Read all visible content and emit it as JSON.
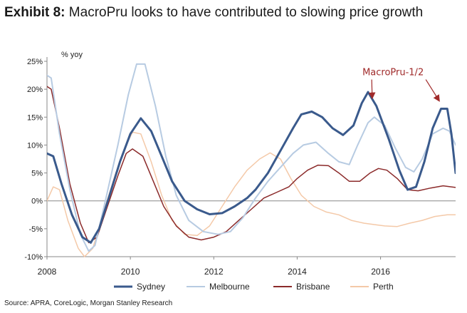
{
  "header": {
    "label": "Exhibit 8:",
    "text": "MacroPru looks to have contributed to slowing price growth"
  },
  "source": "Source: APRA, CoreLogic, Morgan Stanley Research",
  "chart_data": {
    "type": "line",
    "ylabel": "% yoy",
    "ylim": [
      -10,
      25
    ],
    "xlim": [
      2008,
      2017.8
    ],
    "yticks": [
      25,
      20,
      15,
      10,
      5,
      0,
      -5,
      -10
    ],
    "ytick_labels": [
      "25%",
      "20%",
      "15%",
      "10%",
      "5%",
      "0%",
      "-5%",
      "-10%"
    ],
    "xticks": [
      2008,
      2010,
      2012,
      2014,
      2016
    ],
    "xtick_labels": [
      "2008",
      "2010",
      "2012",
      "2014",
      "2016"
    ],
    "annotation": {
      "text": "MacroPru-1/2",
      "arrow_targets": [
        [
          2015.8,
          18.5
        ],
        [
          2017.4,
          18.0
        ]
      ],
      "text_anchor": [
        2016.3,
        22.5
      ]
    },
    "legend_position": "bottom",
    "series": [
      {
        "name": "Sydney",
        "color": "#3a5a8c",
        "width": 3,
        "points": [
          [
            2008.0,
            8.5
          ],
          [
            2008.15,
            8.0
          ],
          [
            2008.35,
            3.0
          ],
          [
            2008.6,
            -2.5
          ],
          [
            2008.85,
            -6.5
          ],
          [
            2009.05,
            -7.5
          ],
          [
            2009.25,
            -5.0
          ],
          [
            2009.5,
            1.0
          ],
          [
            2009.75,
            7.0
          ],
          [
            2010.0,
            12.0
          ],
          [
            2010.25,
            14.8
          ],
          [
            2010.5,
            12.5
          ],
          [
            2010.75,
            8.0
          ],
          [
            2011.0,
            3.5
          ],
          [
            2011.3,
            0.0
          ],
          [
            2011.6,
            -1.5
          ],
          [
            2011.9,
            -2.4
          ],
          [
            2012.2,
            -2.2
          ],
          [
            2012.5,
            -1.0
          ],
          [
            2012.8,
            0.5
          ],
          [
            2013.0,
            2.0
          ],
          [
            2013.3,
            5.0
          ],
          [
            2013.6,
            9.0
          ],
          [
            2013.9,
            13.0
          ],
          [
            2014.1,
            15.5
          ],
          [
            2014.35,
            16.0
          ],
          [
            2014.6,
            15.0
          ],
          [
            2014.85,
            13.0
          ],
          [
            2015.1,
            11.8
          ],
          [
            2015.35,
            13.5
          ],
          [
            2015.55,
            17.5
          ],
          [
            2015.7,
            19.5
          ],
          [
            2015.9,
            17.0
          ],
          [
            2016.2,
            11.0
          ],
          [
            2016.45,
            5.5
          ],
          [
            2016.65,
            2.0
          ],
          [
            2016.85,
            2.5
          ],
          [
            2017.05,
            7.0
          ],
          [
            2017.25,
            13.0
          ],
          [
            2017.45,
            16.5
          ],
          [
            2017.6,
            16.5
          ],
          [
            2017.7,
            12.0
          ],
          [
            2017.8,
            5.0
          ]
        ]
      },
      {
        "name": "Melbourne",
        "color": "#b7cbe2",
        "width": 2,
        "points": [
          [
            2008.0,
            22.5
          ],
          [
            2008.1,
            22.0
          ],
          [
            2008.3,
            12.0
          ],
          [
            2008.55,
            2.0
          ],
          [
            2008.8,
            -6.0
          ],
          [
            2009.0,
            -9.0
          ],
          [
            2009.15,
            -8.0
          ],
          [
            2009.4,
            0.0
          ],
          [
            2009.7,
            10.0
          ],
          [
            2009.95,
            19.0
          ],
          [
            2010.15,
            24.5
          ],
          [
            2010.35,
            24.5
          ],
          [
            2010.6,
            17.0
          ],
          [
            2010.85,
            8.0
          ],
          [
            2011.1,
            1.0
          ],
          [
            2011.4,
            -3.5
          ],
          [
            2011.75,
            -5.5
          ],
          [
            2012.1,
            -6.0
          ],
          [
            2012.4,
            -5.5
          ],
          [
            2012.7,
            -3.0
          ],
          [
            2013.0,
            0.5
          ],
          [
            2013.3,
            3.5
          ],
          [
            2013.6,
            6.0
          ],
          [
            2013.9,
            8.5
          ],
          [
            2014.15,
            10.0
          ],
          [
            2014.45,
            10.5
          ],
          [
            2014.75,
            8.5
          ],
          [
            2015.0,
            7.0
          ],
          [
            2015.25,
            6.5
          ],
          [
            2015.45,
            10.0
          ],
          [
            2015.7,
            14.0
          ],
          [
            2015.85,
            15.0
          ],
          [
            2016.1,
            13.5
          ],
          [
            2016.35,
            9.5
          ],
          [
            2016.6,
            6.0
          ],
          [
            2016.8,
            5.2
          ],
          [
            2017.0,
            7.5
          ],
          [
            2017.25,
            12.0
          ],
          [
            2017.5,
            13.0
          ],
          [
            2017.65,
            12.5
          ],
          [
            2017.8,
            10.0
          ]
        ]
      },
      {
        "name": "Brisbane",
        "color": "#8b2a2a",
        "width": 1.5,
        "points": [
          [
            2008.0,
            20.5
          ],
          [
            2008.1,
            20.0
          ],
          [
            2008.3,
            13.0
          ],
          [
            2008.55,
            3.0
          ],
          [
            2008.8,
            -4.0
          ],
          [
            2009.0,
            -7.5
          ],
          [
            2009.2,
            -6.5
          ],
          [
            2009.45,
            -1.0
          ],
          [
            2009.7,
            4.5
          ],
          [
            2009.9,
            8.5
          ],
          [
            2010.05,
            9.3
          ],
          [
            2010.3,
            8.0
          ],
          [
            2010.55,
            3.5
          ],
          [
            2010.8,
            -1.0
          ],
          [
            2011.1,
            -4.5
          ],
          [
            2011.4,
            -6.5
          ],
          [
            2011.7,
            -7.0
          ],
          [
            2012.0,
            -6.5
          ],
          [
            2012.3,
            -5.5
          ],
          [
            2012.6,
            -3.5
          ],
          [
            2012.9,
            -1.5
          ],
          [
            2013.2,
            0.5
          ],
          [
            2013.5,
            1.5
          ],
          [
            2013.8,
            2.5
          ],
          [
            2014.0,
            4.0
          ],
          [
            2014.25,
            5.5
          ],
          [
            2014.5,
            6.4
          ],
          [
            2014.75,
            6.3
          ],
          [
            2015.0,
            5.0
          ],
          [
            2015.25,
            3.5
          ],
          [
            2015.5,
            3.5
          ],
          [
            2015.75,
            5.0
          ],
          [
            2015.95,
            5.8
          ],
          [
            2016.15,
            5.5
          ],
          [
            2016.4,
            4.0
          ],
          [
            2016.65,
            2.0
          ],
          [
            2016.9,
            1.8
          ],
          [
            2017.2,
            2.3
          ],
          [
            2017.5,
            2.7
          ],
          [
            2017.8,
            2.4
          ]
        ]
      },
      {
        "name": "Perth",
        "color": "#f4c9a8",
        "width": 1.5,
        "points": [
          [
            2008.0,
            0.0
          ],
          [
            2008.15,
            2.5
          ],
          [
            2008.3,
            2.0
          ],
          [
            2008.5,
            -3.5
          ],
          [
            2008.75,
            -8.5
          ],
          [
            2008.9,
            -10.0
          ],
          [
            2009.1,
            -8.5
          ],
          [
            2009.4,
            -1.0
          ],
          [
            2009.65,
            5.0
          ],
          [
            2009.9,
            10.0
          ],
          [
            2010.05,
            12.3
          ],
          [
            2010.25,
            12.0
          ],
          [
            2010.5,
            7.0
          ],
          [
            2010.75,
            1.0
          ],
          [
            2011.0,
            -3.5
          ],
          [
            2011.3,
            -6.0
          ],
          [
            2011.6,
            -6.2
          ],
          [
            2011.9,
            -4.5
          ],
          [
            2012.2,
            -1.0
          ],
          [
            2012.5,
            2.5
          ],
          [
            2012.8,
            5.5
          ],
          [
            2013.1,
            7.5
          ],
          [
            2013.35,
            8.6
          ],
          [
            2013.6,
            7.5
          ],
          [
            2013.85,
            4.0
          ],
          [
            2014.1,
            1.0
          ],
          [
            2014.4,
            -1.0
          ],
          [
            2014.7,
            -2.0
          ],
          [
            2015.0,
            -2.5
          ],
          [
            2015.3,
            -3.5
          ],
          [
            2015.6,
            -4.0
          ],
          [
            2015.9,
            -4.3
          ],
          [
            2016.1,
            -4.5
          ],
          [
            2016.4,
            -4.6
          ],
          [
            2016.7,
            -4.0
          ],
          [
            2017.0,
            -3.5
          ],
          [
            2017.3,
            -2.8
          ],
          [
            2017.6,
            -2.5
          ],
          [
            2017.8,
            -2.5
          ]
        ]
      }
    ]
  }
}
